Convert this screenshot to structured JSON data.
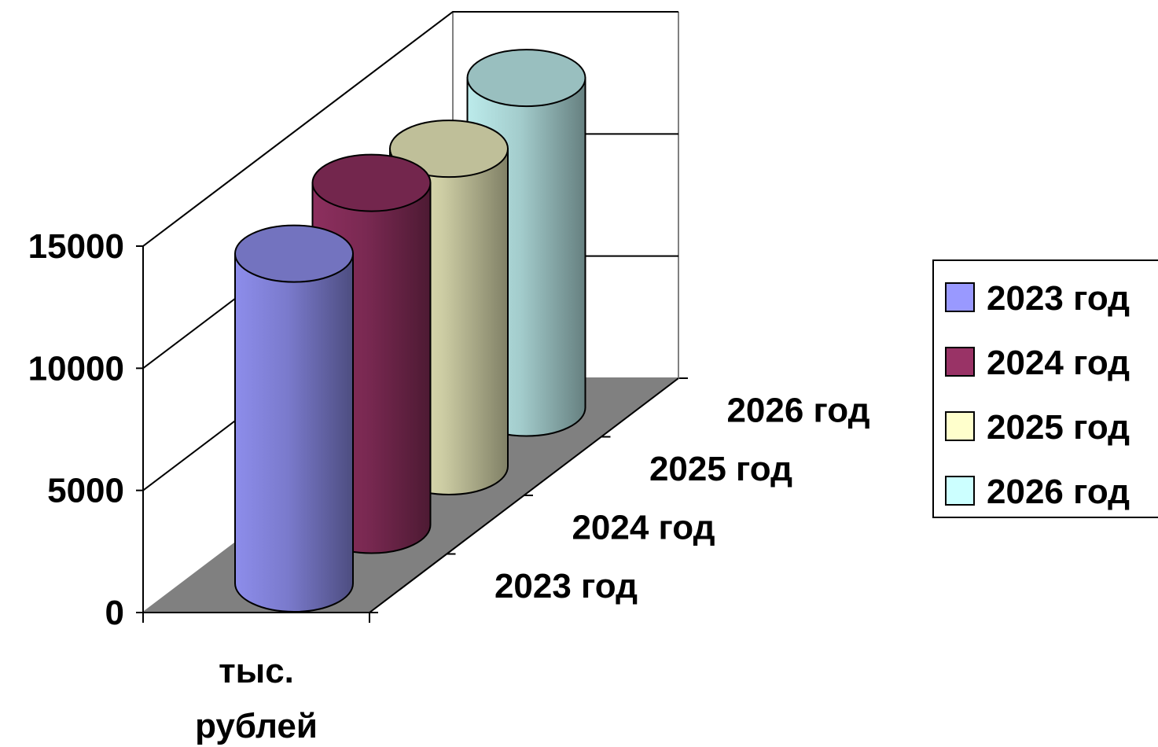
{
  "chart_data": {
    "type": "bar",
    "style": "3d-cylinder",
    "categories": [
      "тыс. рублей"
    ],
    "category_label_lines": [
      "тыс.",
      "рублей"
    ],
    "depth_labels": [
      "2023 год",
      "2024 год",
      "2025 год",
      "2026 год"
    ],
    "series": [
      {
        "name": "2023 год",
        "values": [
          13500
        ],
        "color": "#9999ff"
      },
      {
        "name": "2024 год",
        "values": [
          14000
        ],
        "color": "#993366"
      },
      {
        "name": "2025 год",
        "values": [
          13000
        ],
        "color": "#ffffcc"
      },
      {
        "name": "2026 год",
        "values": [
          13500
        ],
        "color": "#ccffff"
      }
    ],
    "y_ticks": [
      "0",
      "5000",
      "10000",
      "15000"
    ],
    "ylim": [
      0,
      15000
    ],
    "title": "",
    "xlabel": "",
    "ylabel": "",
    "grid": true,
    "legend_position": "right",
    "floor_color": "#808080"
  }
}
